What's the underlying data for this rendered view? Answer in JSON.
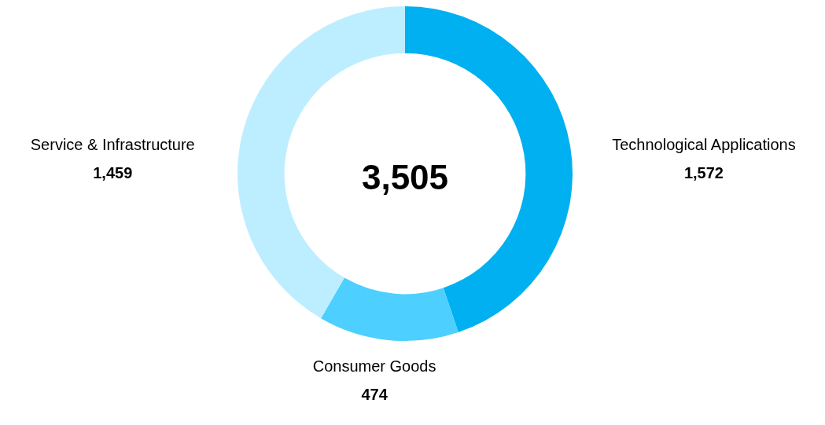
{
  "chart_data": {
    "type": "donut",
    "categories": [
      "Technological Applications",
      "Consumer Goods",
      "Service & Infrastructure"
    ],
    "values": [
      1572,
      474,
      1459
    ],
    "colors": [
      "#00b0f0",
      "#4dcfff",
      "#bdeeff"
    ],
    "annotations": [
      "3,505"
    ],
    "value_labels": [
      "1,572",
      "474",
      "1,459"
    ],
    "legend": false
  }
}
